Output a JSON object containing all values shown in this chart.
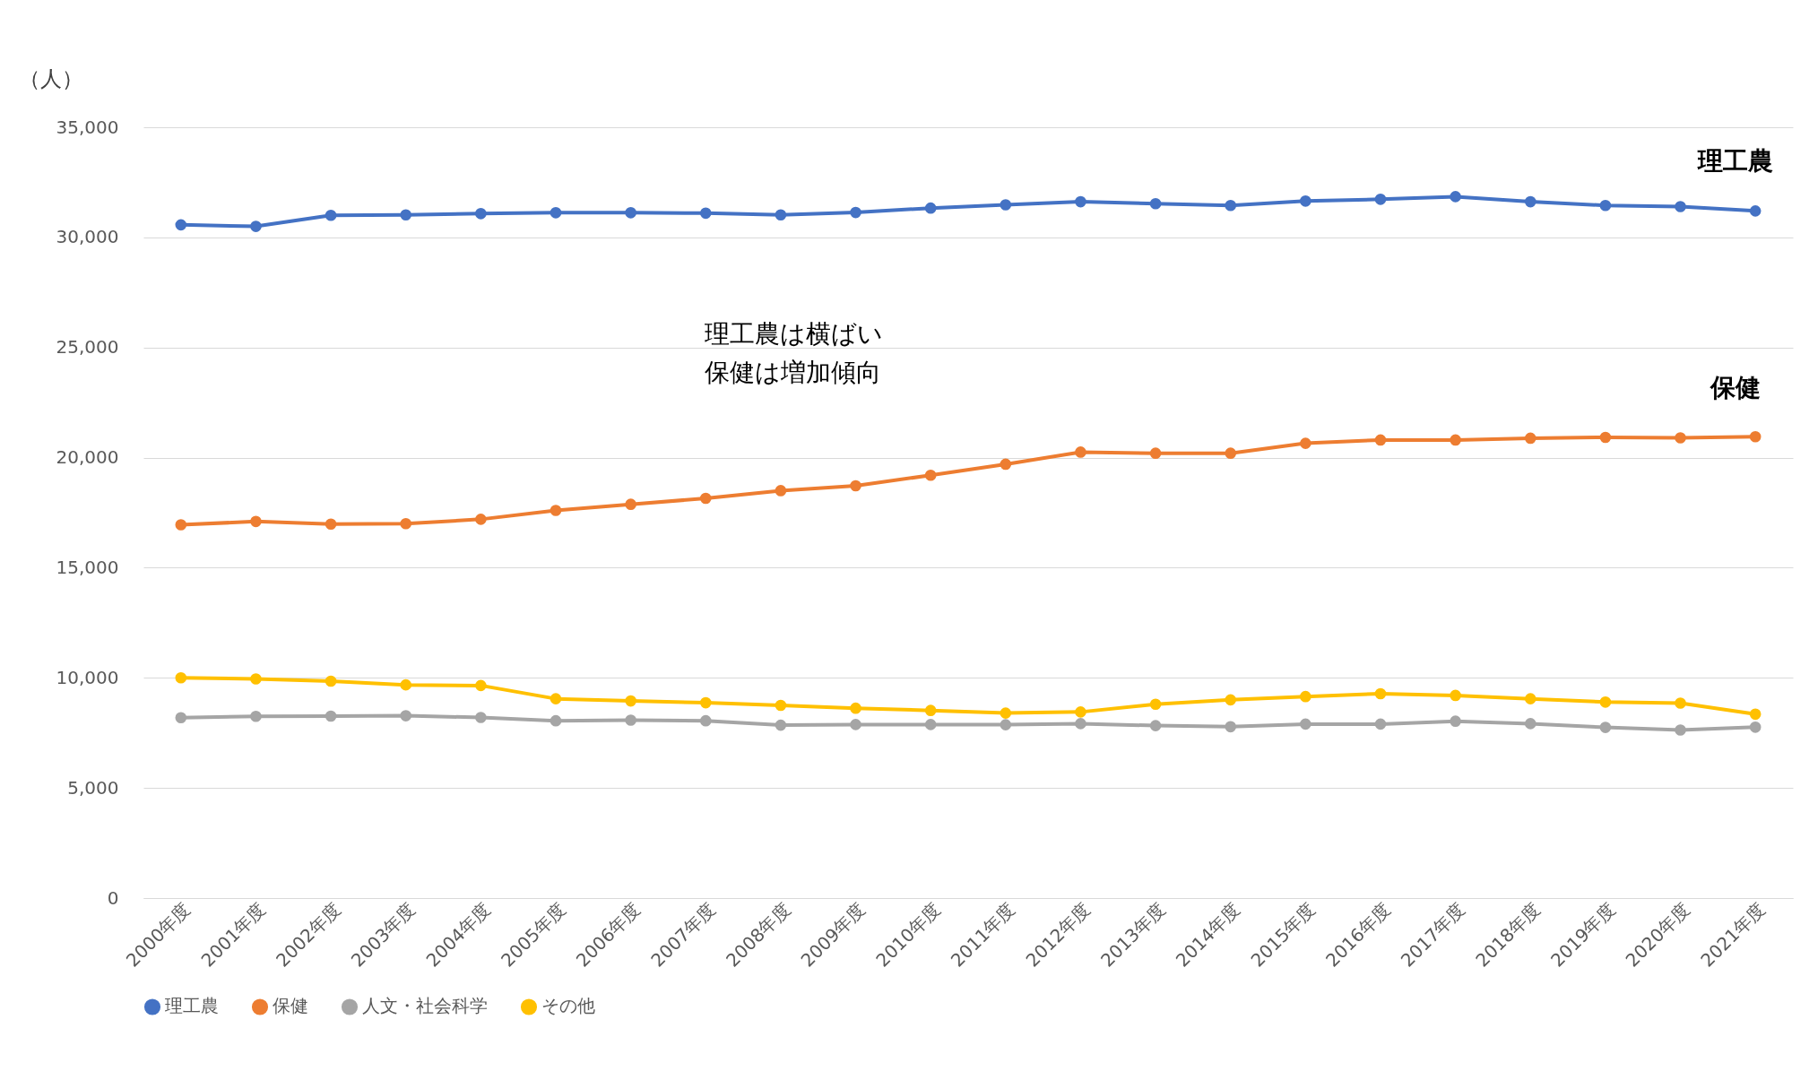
{
  "chart_data": {
    "type": "line",
    "ylabel": "（人）",
    "categories": [
      "2000年度",
      "2001年度",
      "2002年度",
      "2003年度",
      "2004年度",
      "2005年度",
      "2006年度",
      "2007年度",
      "2008年度",
      "2009年度",
      "2010年度",
      "2011年度",
      "2012年度",
      "2013年度",
      "2014年度",
      "2015年度",
      "2016年度",
      "2017年度",
      "2018年度",
      "2019年度",
      "2020年度",
      "2021年度"
    ],
    "series": [
      {
        "name": "理工農",
        "color": "#4472c4",
        "values": [
          30570,
          30500,
          31000,
          31020,
          31080,
          31120,
          31120,
          31100,
          31020,
          31130,
          31330,
          31480,
          31620,
          31530,
          31450,
          31650,
          31730,
          31850,
          31620,
          31450,
          31400,
          31200
        ]
      },
      {
        "name": "保健",
        "color": "#ed7d31",
        "values": [
          16950,
          17100,
          16980,
          17000,
          17200,
          17600,
          17880,
          18150,
          18500,
          18720,
          19200,
          19700,
          20250,
          20200,
          20200,
          20650,
          20800,
          20800,
          20880,
          20920,
          20900,
          20950
        ]
      },
      {
        "name": "人文・社会科学",
        "color": "#a5a5a5",
        "values": [
          8190,
          8250,
          8260,
          8280,
          8200,
          8050,
          8080,
          8050,
          7850,
          7880,
          7880,
          7870,
          7920,
          7830,
          7780,
          7900,
          7900,
          8030,
          7920,
          7750,
          7630,
          7760
        ]
      },
      {
        "name": "その他",
        "color": "#ffc000",
        "values": [
          10000,
          9950,
          9850,
          9680,
          9650,
          9050,
          8950,
          8870,
          8750,
          8620,
          8520,
          8400,
          8450,
          8800,
          9000,
          9150,
          9280,
          9200,
          9050,
          8900,
          8850,
          8350
        ]
      }
    ],
    "ylim": [
      0,
      35000
    ],
    "yticks": [
      {
        "value": 0,
        "label": "0"
      },
      {
        "value": 5000,
        "label": "5,000"
      },
      {
        "value": 10000,
        "label": "10,000"
      },
      {
        "value": 15000,
        "label": "15,000"
      },
      {
        "value": 20000,
        "label": "20,000"
      },
      {
        "value": 25000,
        "label": "25,000"
      },
      {
        "value": 30000,
        "label": "30,000"
      },
      {
        "value": 35000,
        "label": "35,000"
      }
    ],
    "grid": "y",
    "legend": "bottom",
    "marker": "circle",
    "line_style": "solid",
    "annotations": [
      "理工農",
      "保健",
      "理工農は横ばい",
      "保健は増加傾向"
    ]
  }
}
